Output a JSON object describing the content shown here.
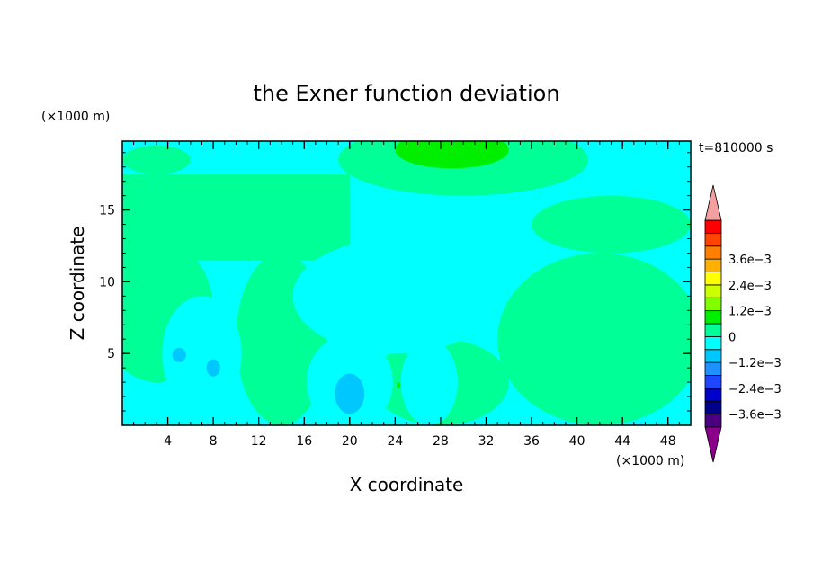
{
  "chart_data": {
    "type": "heatmap",
    "title": "the Exner function deviation",
    "time_label": "t=810000 s",
    "xlabel": "X coordinate",
    "ylabel": "Z coordinate",
    "x_unit": "(×1000 m)",
    "y_unit": "(×1000 m)",
    "xlim": [
      0,
      50
    ],
    "ylim": [
      0,
      19.8
    ],
    "xticks": [
      "4",
      "8",
      "12",
      "16",
      "20",
      "24",
      "28",
      "32",
      "36",
      "40",
      "44",
      "48"
    ],
    "yticks": [
      "5",
      "10",
      "15"
    ],
    "colorbar": {
      "levels": [
        -0.0042,
        -0.0036,
        -0.003,
        -0.0024,
        -0.0018,
        -0.0012,
        -0.0006,
        0,
        0.0006,
        0.0012,
        0.0018,
        0.0024,
        0.003,
        0.0036,
        0.0042
      ],
      "labels": [
        "3.6e−3",
        "2.4e−3",
        "1.2e−3",
        "0",
        "−1.2e−3",
        "−2.4e−3",
        "−3.6e−3"
      ],
      "colors": [
        "#8b008b",
        "#4b0082",
        "#00008b",
        "#0000cd",
        "#1e46ff",
        "#1e90ff",
        "#00c8ff",
        "#00ffff",
        "#00ff96",
        "#00ee00",
        "#7fff00",
        "#ccff00",
        "#ffff00",
        "#ffb000",
        "#ff7f00",
        "#ff4500",
        "#ff0000",
        "#f4a0a0"
      ]
    },
    "field": {
      "background_value": -0.0003,
      "regions": [
        {
          "value": 0.0003,
          "shape": "band",
          "z_range": [
            11.5,
            17.5
          ],
          "x_range": [
            0,
            20
          ]
        },
        {
          "value": 0.0003,
          "shape": "blob",
          "x": 3,
          "z": 18.5,
          "rx": 3,
          "rz": 1
        },
        {
          "value": 0.0003,
          "shape": "blob",
          "x": 30,
          "z": 18.5,
          "rx": 11,
          "rz": 2.5
        },
        {
          "value": 0.0003,
          "shape": "blob",
          "x": 43,
          "z": 14,
          "rx": 7,
          "rz": 2
        },
        {
          "value": 0.0003,
          "shape": "blob",
          "x": 3,
          "z": 8,
          "rx": 5,
          "rz": 5
        },
        {
          "value": 0.0003,
          "shape": "blob",
          "x": 42,
          "z": 6,
          "rx": 9,
          "rz": 6
        },
        {
          "value": 0.0003,
          "shape": "blob",
          "x": 14,
          "z": 6,
          "rx": 4,
          "rz": 6
        },
        {
          "value": 0.0003,
          "shape": "blob",
          "x": 28,
          "z": 3,
          "rx": 6,
          "rz": 3
        },
        {
          "value": 0.0009,
          "shape": "blob",
          "x": 29,
          "z": 19.2,
          "rx": 5,
          "rz": 1.3
        },
        {
          "value": -0.0003,
          "shape": "blob",
          "x": 24,
          "z": 9,
          "rx": 9,
          "rz": 4
        },
        {
          "value": -0.0003,
          "shape": "blob",
          "x": 7,
          "z": 5,
          "rx": 3.5,
          "rz": 4
        },
        {
          "value": -0.0003,
          "shape": "blob",
          "x": 20,
          "z": 3,
          "rx": 3.8,
          "rz": 3.3
        },
        {
          "value": -0.0003,
          "shape": "blob",
          "x": 27,
          "z": 3,
          "rx": 2.5,
          "rz": 3
        },
        {
          "value": -0.0009,
          "shape": "blob",
          "x": 20,
          "z": 2.2,
          "rx": 1.3,
          "rz": 1.4
        },
        {
          "value": -0.0009,
          "shape": "blob",
          "x": 5,
          "z": 4.9,
          "rx": 0.6,
          "rz": 0.5
        },
        {
          "value": -0.0009,
          "shape": "blob",
          "x": 8,
          "z": 4,
          "rx": 0.6,
          "rz": 0.6
        },
        {
          "value": 0.0009,
          "shape": "blob",
          "x": 24.3,
          "z": 2.8,
          "rx": 0.15,
          "rz": 0.2
        }
      ]
    }
  }
}
